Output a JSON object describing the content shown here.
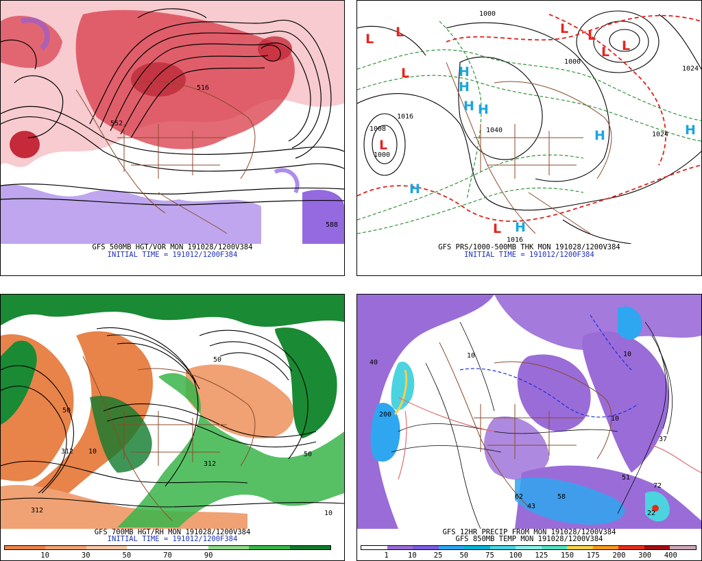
{
  "panels": [
    {
      "id": "p1",
      "caption_line1": "GFS 500MB HGT/VOR MON 191028/1200V384",
      "caption_line2": "INITIAL TIME = 191012/1200F384",
      "contour_labels": [
        "552",
        "588",
        "516"
      ]
    },
    {
      "id": "p2",
      "caption_line1": "GFS PRS/1000-500MB THK MON 191028/1200V384",
      "caption_line2": "INITIAL TIME = 191012/1200F384",
      "contour_labels": [
        "1000",
        "1016",
        "1008",
        "1000",
        "1024",
        "1024",
        "1040",
        "1016",
        "1000"
      ],
      "pressure_centers": [
        {
          "type": "L",
          "color": "#e8231f"
        },
        {
          "type": "L",
          "color": "#e8231f"
        },
        {
          "type": "L",
          "color": "#e8231f"
        },
        {
          "type": "L",
          "color": "#e8231f"
        },
        {
          "type": "L",
          "color": "#e8231f"
        },
        {
          "type": "L",
          "color": "#e8231f"
        },
        {
          "type": "L",
          "color": "#e8231f"
        },
        {
          "type": "L",
          "color": "#e8231f"
        },
        {
          "type": "L",
          "color": "#e8231f"
        },
        {
          "type": "H",
          "color": "#1aa6e0"
        },
        {
          "type": "H",
          "color": "#1aa6e0"
        },
        {
          "type": "H",
          "color": "#1aa6e0"
        },
        {
          "type": "H",
          "color": "#1aa6e0"
        },
        {
          "type": "H",
          "color": "#1aa6e0"
        },
        {
          "type": "H",
          "color": "#1aa6e0"
        },
        {
          "type": "H",
          "color": "#1aa6e0"
        },
        {
          "type": "H",
          "color": "#1aa6e0"
        }
      ]
    },
    {
      "id": "p3",
      "caption_line1": "GFS 700MB HGT/RH MON 191028/1200V384",
      "caption_line2": "INITIAL TIME = 191012/1200F384",
      "contour_labels": [
        "312",
        "312",
        "312",
        "50",
        "10",
        "50",
        "50",
        "10"
      ],
      "colorbar": {
        "colors": [
          "#e8834a",
          "#f0a274",
          "#f7c5a5",
          "#ffffff",
          "#ffffff",
          "#8fd98a",
          "#39b54a",
          "#0f7a2c"
        ],
        "labels": [
          "10",
          "30",
          "50",
          "70",
          "90"
        ]
      }
    },
    {
      "id": "p4",
      "caption_line1": "GFS 12HR PRECIP FROM MON 191028/1200V384",
      "caption_line2": "GFS 850MB TEMP MON 191028/1200V384",
      "contour_labels": [
        "40",
        "200",
        "10",
        "62",
        "58",
        "43",
        "37",
        "51",
        "72",
        "10",
        "10",
        "22"
      ],
      "colorbar": {
        "colors": [
          "#ffffff",
          "#9a6cd8",
          "#7b5ce0",
          "#2fa6f0",
          "#00b5d8",
          "#4bd3e0",
          "#8af0e8",
          "#55e0c0",
          "#f5d04a",
          "#f59a20",
          "#e0301a",
          "#a01010",
          "#caa8b8"
        ],
        "labels": [
          "1",
          "10",
          "25",
          "50",
          "75",
          "100",
          "125",
          "150",
          "175",
          "200",
          "300",
          "400"
        ]
      }
    }
  ]
}
